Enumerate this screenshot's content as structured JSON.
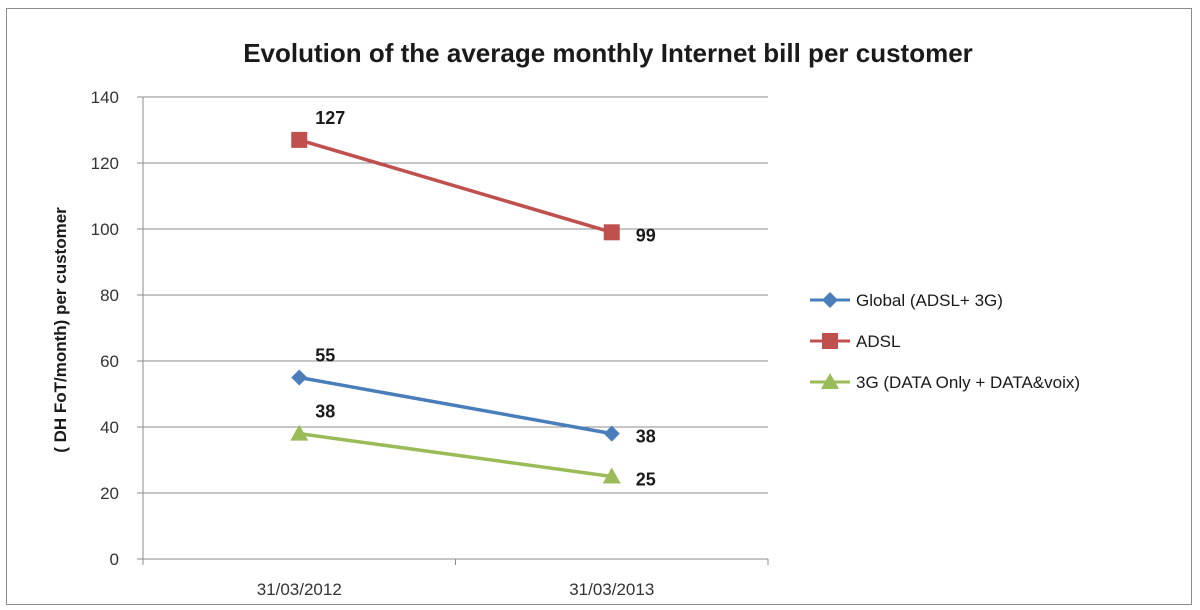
{
  "chart_data": {
    "type": "line",
    "title": "Evolution of the average monthly Internet bill per customer",
    "xlabel": "",
    "ylabel": "( DH FoT/month) per customer",
    "categories": [
      "31/03/2012",
      "31/03/2013"
    ],
    "ylim": [
      0,
      140
    ],
    "yticks": [
      0,
      20,
      40,
      60,
      80,
      100,
      120,
      140
    ],
    "grid": true,
    "legend_position": "right",
    "series": [
      {
        "name": "Global (ADSL+ 3G)",
        "values": [
          55,
          38
        ],
        "labels": [
          "55",
          "38"
        ],
        "color": "#4a7ebb",
        "marker": "diamond"
      },
      {
        "name": "ADSL",
        "values": [
          127,
          99
        ],
        "labels": [
          "127",
          "99"
        ],
        "color": "#c0504d",
        "marker": "square"
      },
      {
        "name": "3G (DATA Only + DATA&voix)",
        "values": [
          38,
          25
        ],
        "labels": [
          "38",
          "25"
        ],
        "color": "#9bbb59",
        "marker": "triangle"
      }
    ]
  }
}
